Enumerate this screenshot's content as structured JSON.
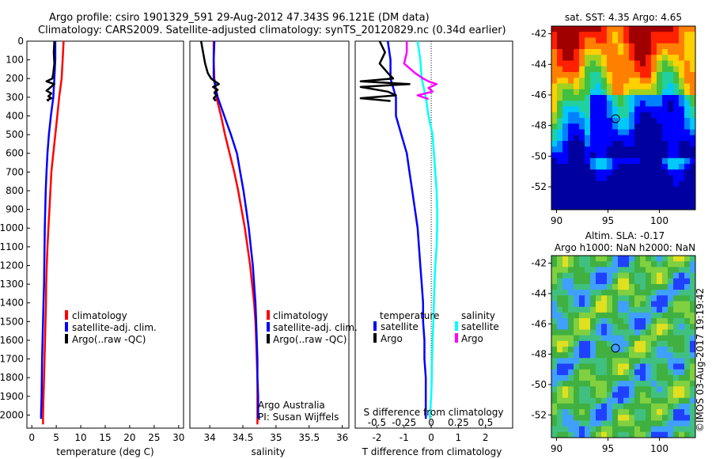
{
  "header": {
    "line1": "Argo profile: csiro 1901329_591 29-Aug-2012 47.343S 96.121E (DM data)",
    "line2": "Climatology: CARS2009. Satellite-adjusted climatology: synTS_20120829.nc (0.34d earlier)"
  },
  "colors": {
    "climatology": "#ff0000",
    "satellite": "#0000ff",
    "argo": "#000000",
    "satellite_salinity": "#00ffff",
    "argo_salinity": "#ff00ff"
  },
  "chart_data": [
    {
      "type": "line",
      "id": "temperature",
      "xlabel": "temperature (deg C)",
      "ylabel": "",
      "xlim": [
        -1,
        31
      ],
      "ylim": [
        2070,
        0
      ],
      "xticks": [
        0,
        5,
        10,
        15,
        20,
        25,
        30
      ],
      "yticks": [
        0,
        100,
        200,
        300,
        400,
        500,
        600,
        700,
        800,
        900,
        1000,
        1100,
        1200,
        1300,
        1400,
        1500,
        1600,
        1700,
        1800,
        1900,
        2000
      ],
      "legend": [
        "climatology",
        "satellite-adj. clim.",
        "Argo(..raw -QC)"
      ],
      "legend_position": "lower-center",
      "series": [
        {
          "name": "climatology",
          "color": "#ff0000",
          "x": [
            6.5,
            6.3,
            6.1,
            5.6,
            5.2,
            4.8,
            4.4,
            4.0,
            3.8,
            3.6,
            3.4,
            3.2,
            3.05,
            2.95,
            2.9,
            2.8,
            2.7,
            2.6,
            2.5,
            2.4,
            2.3,
            2.3
          ],
          "y": [
            0,
            100,
            200,
            300,
            400,
            500,
            600,
            700,
            800,
            900,
            1000,
            1100,
            1200,
            1300,
            1400,
            1500,
            1600,
            1700,
            1800,
            1900,
            2000,
            2050
          ]
        },
        {
          "name": "satellite-adj. clim.",
          "color": "#0000ff",
          "x": [
            4.8,
            4.8,
            4.6,
            4.4,
            3.9,
            3.5,
            3.2,
            3.0,
            2.85,
            2.75,
            2.65,
            2.6,
            2.55,
            2.5,
            2.4,
            2.3,
            2.2,
            2.1,
            2.05,
            2.0,
            1.9,
            1.9
          ],
          "y": [
            0,
            100,
            200,
            300,
            400,
            500,
            600,
            700,
            800,
            900,
            1000,
            1100,
            1200,
            1300,
            1400,
            1500,
            1600,
            1700,
            1800,
            1900,
            2000,
            2020
          ]
        },
        {
          "name": "Argo(..raw -QC)",
          "color": "#000000",
          "x": [
            4.6,
            4.5,
            4.6,
            4.4,
            4.2,
            3.0,
            4.6,
            3.7,
            3.0,
            4.0,
            3.4,
            4.0,
            3.2,
            3.5
          ],
          "y": [
            0,
            60,
            120,
            170,
            200,
            215,
            230,
            250,
            265,
            280,
            295,
            305,
            315,
            320
          ]
        }
      ]
    },
    {
      "type": "line",
      "id": "salinity",
      "xlabel": "salinity",
      "ylabel": "",
      "xlim": [
        33.7,
        36.1
      ],
      "ylim": [
        2070,
        0
      ],
      "xticks": [
        34,
        34.5,
        35,
        35.5,
        36
      ],
      "legend": [
        "climatology",
        "satellite-adj. clim.",
        "Argo(..raw -QC)"
      ],
      "legend_position": "lower-center",
      "annotations": [
        "Argo Australia",
        "PI: Susan Wijffels"
      ],
      "series": [
        {
          "name": "climatology",
          "color": "#ff0000",
          "x": [
            34.06,
            34.06,
            34.07,
            34.1,
            34.17,
            34.23,
            34.3,
            34.37,
            34.43,
            34.48,
            34.53,
            34.57,
            34.61,
            34.64,
            34.67,
            34.69,
            34.7,
            34.71,
            34.72,
            34.72,
            34.72,
            34.72
          ],
          "y": [
            0,
            100,
            200,
            300,
            400,
            500,
            600,
            700,
            800,
            900,
            1000,
            1100,
            1200,
            1300,
            1400,
            1500,
            1600,
            1700,
            1800,
            1900,
            2000,
            2050
          ]
        },
        {
          "name": "satellite-adj. clim.",
          "color": "#0000ff",
          "x": [
            34.07,
            34.06,
            34.06,
            34.12,
            34.22,
            34.32,
            34.41,
            34.46,
            34.51,
            34.55,
            34.59,
            34.62,
            34.65,
            34.67,
            34.69,
            34.7,
            34.71,
            34.72,
            34.72,
            34.73,
            34.73,
            34.73
          ],
          "y": [
            0,
            100,
            200,
            300,
            400,
            500,
            600,
            700,
            800,
            900,
            1000,
            1100,
            1200,
            1300,
            1400,
            1500,
            1600,
            1700,
            1800,
            1900,
            2000,
            2020
          ]
        },
        {
          "name": "Argo(..raw -QC)",
          "color": "#000000",
          "x": [
            33.87,
            33.9,
            33.93,
            33.97,
            34.02,
            34.08,
            34.14,
            34.05,
            34.12,
            34.07,
            34.1,
            34.06,
            34.09
          ],
          "y": [
            0,
            60,
            120,
            170,
            200,
            215,
            230,
            245,
            260,
            275,
            290,
            305,
            320
          ]
        }
      ]
    },
    {
      "type": "line",
      "id": "difference",
      "xlabel": "T difference from climatology",
      "title": "S difference from climatology",
      "xlim": [
        -2.8,
        3.0
      ],
      "ylim": [
        2070,
        0
      ],
      "xticks": [
        -2,
        -1,
        0,
        1,
        2
      ],
      "top_ticks": [
        "-0.5",
        "-0.25",
        "0",
        "0.25",
        "0.5"
      ],
      "legend_headers": [
        "temperature",
        "salinity"
      ],
      "legend": [
        "satellite",
        "Argo",
        "satellite",
        "Argo"
      ],
      "legend_position": "lower-center",
      "series": [
        {
          "name": "satellite",
          "quantity": "temperature",
          "color": "#0000ff",
          "x": [
            -1.6,
            -1.5,
            -1.5,
            -1.3,
            -1.3,
            -1.1,
            -0.9,
            -0.8,
            -0.7,
            -0.6,
            -0.5,
            -0.45,
            -0.4,
            -0.35,
            -0.3,
            -0.3,
            -0.25,
            -0.25,
            -0.2,
            -0.2,
            -0.2,
            -0.2
          ],
          "y": [
            0,
            100,
            200,
            300,
            400,
            500,
            600,
            700,
            800,
            900,
            1000,
            1100,
            1200,
            1300,
            1400,
            1500,
            1600,
            1700,
            1800,
            1900,
            2000,
            2020
          ]
        },
        {
          "name": "Argo",
          "quantity": "temperature",
          "color": "#000000",
          "x": [
            -1.9,
            -1.7,
            -1.9,
            -1.6,
            -1.4,
            -2.6,
            -0.8,
            -2.6,
            -1.6,
            -1.3,
            -2.6,
            -1.5
          ],
          "y": [
            0,
            60,
            120,
            170,
            200,
            215,
            230,
            245,
            270,
            290,
            305,
            320
          ]
        },
        {
          "name": "satellite",
          "quantity": "salinity",
          "color": "#00ffff",
          "x": [
            -0.5,
            -0.4,
            -0.35,
            -0.2,
            -0.1,
            0.05,
            0.1,
            0.15,
            0.2,
            0.22,
            0.22,
            0.2,
            0.15,
            0.12,
            0.1,
            0.08,
            0.05,
            0.03,
            0.02,
            0.0,
            -0.05,
            -0.05
          ],
          "y": [
            0,
            100,
            200,
            300,
            400,
            500,
            600,
            700,
            800,
            900,
            1000,
            1100,
            1200,
            1300,
            1400,
            1500,
            1600,
            1700,
            1800,
            1900,
            2000,
            2020
          ]
        },
        {
          "name": "Argo",
          "quantity": "salinity",
          "color": "#ff00ff",
          "x": [
            -0.9,
            -0.9,
            -1.0,
            -0.6,
            -0.3,
            -0.1,
            0.2,
            -0.1,
            0.05,
            -0.5,
            -0.1
          ],
          "y": [
            0,
            60,
            120,
            170,
            200,
            215,
            230,
            250,
            270,
            290,
            310
          ]
        }
      ]
    },
    {
      "type": "heatmap",
      "id": "sst-map",
      "title": "sat. SST: 4.35 Argo: 4.65",
      "xticks": [
        90,
        95,
        100
      ],
      "yticks": [
        -42,
        -44,
        -46,
        -48,
        -50,
        -52
      ],
      "xlim": [
        89.5,
        103.5
      ],
      "ylim": [
        -53.5,
        -41.5
      ],
      "marker": {
        "lon": 96.121,
        "lat": -47.343
      }
    },
    {
      "type": "heatmap",
      "id": "sla-map",
      "title": "Altim. SLA: -0.17",
      "subtitle": "Argo h1000: NaN h2000: NaN",
      "xticks": [
        90,
        95,
        100
      ],
      "yticks": [
        -42,
        -44,
        -46,
        -48,
        -50,
        -52
      ],
      "xlim": [
        89.5,
        103.5
      ],
      "ylim": [
        -53.5,
        -41.5
      ],
      "marker": {
        "lon": 96.121,
        "lat": -47.343
      }
    }
  ],
  "watermark": "©IMOS 03-Aug-2017 19:19:42"
}
